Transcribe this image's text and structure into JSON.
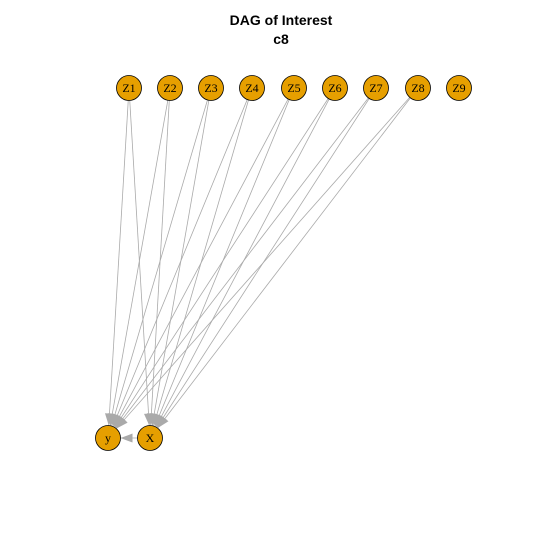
{
  "title": {
    "line1": "DAG of Interest",
    "line2": "c8"
  },
  "colors": {
    "node_fill": "#e69f00",
    "node_stroke": "#000000",
    "edge": "#aaaaaa",
    "background": "#ffffff"
  },
  "nodes": [
    {
      "id": "Z1",
      "label": "Z1"
    },
    {
      "id": "Z2",
      "label": "Z2"
    },
    {
      "id": "Z3",
      "label": "Z3"
    },
    {
      "id": "Z4",
      "label": "Z4"
    },
    {
      "id": "Z5",
      "label": "Z5"
    },
    {
      "id": "Z6",
      "label": "Z6"
    },
    {
      "id": "Z7",
      "label": "Z7"
    },
    {
      "id": "Z8",
      "label": "Z8"
    },
    {
      "id": "Z9",
      "label": "Z9"
    },
    {
      "id": "y",
      "label": "y"
    },
    {
      "id": "X",
      "label": "X"
    }
  ],
  "edges": [
    {
      "from": "Z1",
      "to": "y"
    },
    {
      "from": "Z1",
      "to": "X"
    },
    {
      "from": "Z2",
      "to": "y"
    },
    {
      "from": "Z2",
      "to": "X"
    },
    {
      "from": "Z3",
      "to": "y"
    },
    {
      "from": "Z3",
      "to": "X"
    },
    {
      "from": "Z4",
      "to": "y"
    },
    {
      "from": "Z4",
      "to": "X"
    },
    {
      "from": "Z5",
      "to": "y"
    },
    {
      "from": "Z5",
      "to": "X"
    },
    {
      "from": "Z6",
      "to": "y"
    },
    {
      "from": "Z6",
      "to": "X"
    },
    {
      "from": "Z7",
      "to": "y"
    },
    {
      "from": "Z7",
      "to": "X"
    },
    {
      "from": "Z8",
      "to": "y"
    },
    {
      "from": "Z8",
      "to": "X"
    },
    {
      "from": "X",
      "to": "y"
    }
  ]
}
